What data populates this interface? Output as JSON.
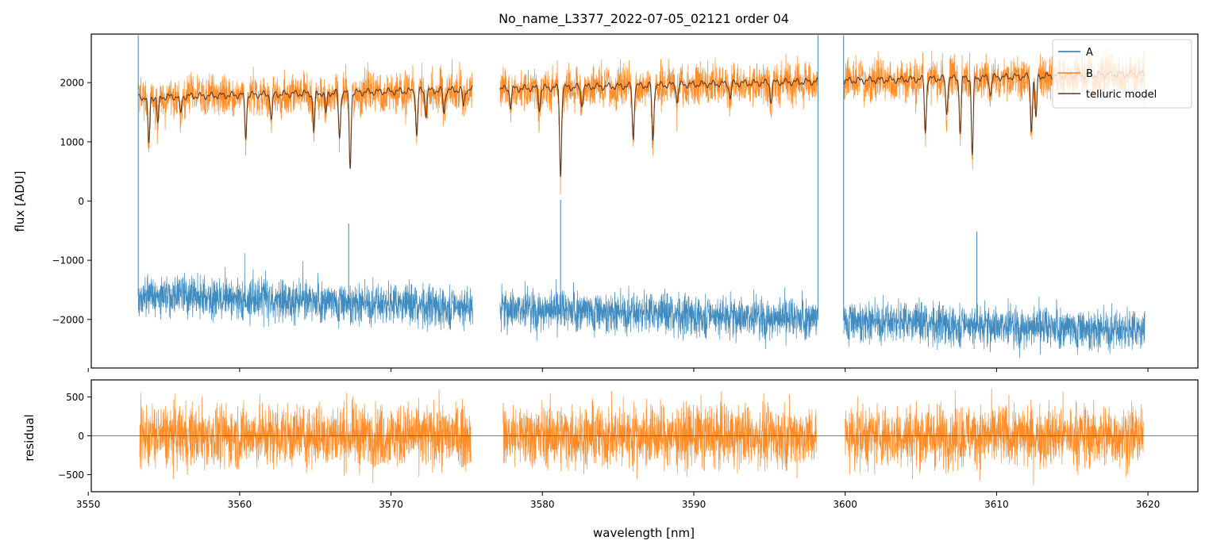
{
  "chart_data": [
    {
      "type": "line",
      "panel": "main",
      "title": "No_name_L3377_2022-07-05_02121  order 04",
      "xlabel": "",
      "ylabel": "flux [ADU]",
      "xlim": [
        3550.2,
        3623.3
      ],
      "ylim": [
        -2820,
        2820
      ],
      "xticks": [
        3550,
        3560,
        3570,
        3580,
        3590,
        3600,
        3610,
        3620
      ],
      "yticks": [
        -2000,
        -1000,
        0,
        1000,
        2000
      ],
      "ytick_labels": [
        "−2000",
        "−1000",
        "0",
        "1000",
        "2000"
      ],
      "legend": {
        "location": "top-right",
        "entries": [
          "A",
          "B",
          "telluric model"
        ]
      },
      "segments": [
        [
          3553.3,
          3575.4
        ],
        [
          3577.2,
          3598.2
        ],
        [
          3599.9,
          3619.8
        ]
      ],
      "series": [
        {
          "name": "A",
          "color": "#1f77b4",
          "level_start": -1600,
          "level_end": -2200,
          "noise": 230,
          "spikes_up": [
            [
              3553.3,
              2800
            ],
            [
              3567.2,
              -380
            ],
            [
              3581.2,
              20
            ],
            [
              3598.2,
              2800
            ],
            [
              3599.9,
              2800
            ],
            [
              3608.7,
              -520
            ]
          ]
        },
        {
          "name": "B",
          "color": "#ff7f0e",
          "level_start": 1750,
          "level_end": 2150,
          "noise": 230
        },
        {
          "name": "telluric model",
          "color": "#5a3a26",
          "level_start": 1750,
          "level_end": 2150,
          "absorption_lines": [
            [
              3554.0,
              800
            ],
            [
              3554.6,
              450
            ],
            [
              3556.1,
              300
            ],
            [
              3560.4,
              700
            ],
            [
              3562.1,
              450
            ],
            [
              3564.9,
              650
            ],
            [
              3565.7,
              350
            ],
            [
              3566.6,
              780
            ],
            [
              3567.3,
              1250
            ],
            [
              3571.7,
              750
            ],
            [
              3572.3,
              400
            ],
            [
              3573.5,
              400
            ],
            [
              3574.8,
              300
            ],
            [
              3577.9,
              300
            ],
            [
              3579.8,
              350
            ],
            [
              3581.2,
              1500
            ],
            [
              3582.6,
              300
            ],
            [
              3586.0,
              900
            ],
            [
              3587.3,
              950
            ],
            [
              3588.9,
              300
            ],
            [
              3592.4,
              250
            ],
            [
              3595.1,
              300
            ],
            [
              3605.3,
              900
            ],
            [
              3606.7,
              600
            ],
            [
              3607.6,
              900
            ],
            [
              3608.4,
              1300
            ],
            [
              3609.6,
              300
            ],
            [
              3612.6,
              700
            ],
            [
              3612.3,
              900
            ]
          ]
        }
      ]
    },
    {
      "type": "line",
      "panel": "residual",
      "xlabel": "wavelength [nm]",
      "ylabel": "residual",
      "xlim": [
        3550.2,
        3623.3
      ],
      "ylim": [
        -720,
        720
      ],
      "xticks": [
        3550,
        3560,
        3570,
        3580,
        3590,
        3600,
        3610,
        3620
      ],
      "yticks": [
        -500,
        0,
        500
      ],
      "ytick_labels": [
        "−500",
        "0",
        "500"
      ],
      "zero_line": 0,
      "series": [
        {
          "name": "residual",
          "color": "#ff7f0e",
          "noise": 250,
          "segments": [
            [
              3553.4,
              3575.3
            ],
            [
              3577.4,
              3598.1
            ],
            [
              3600.0,
              3619.7
            ]
          ]
        }
      ]
    }
  ]
}
